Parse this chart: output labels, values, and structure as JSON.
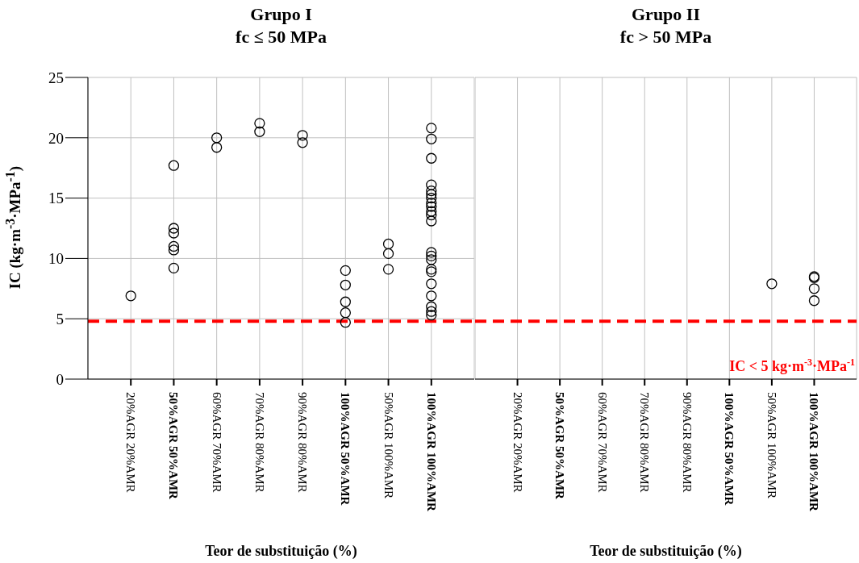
{
  "chart_data": [
    {
      "type": "scatter",
      "title": "Grupo I\nfc ≤ 50 MPa",
      "xlabel": "Teor de substituição (%)",
      "ylabel": "IC (kg·m$^{-3}$·MPa$^{-1}$)",
      "categories": [
        "20%AGR 20%AMR",
        "50%AGR 50%AMR",
        "60%AGR 70%AMR",
        "70%AGR 80%AMR",
        "90%AGR 80%AMR",
        "100%AGR 50%AMR",
        "50%AGR 100%AMR",
        "100%AGR 100%AMR"
      ],
      "series": [
        {
          "color": "#000000",
          "x": [
            "20%AGR 20%AMR",
            "50%AGR 50%AMR",
            "50%AGR 50%AMR",
            "50%AGR 50%AMR",
            "50%AGR 50%AMR",
            "50%AGR 50%AMR",
            "50%AGR 50%AMR",
            "60%AGR 70%AMR",
            "60%AGR 70%AMR",
            "70%AGR 80%AMR",
            "70%AGR 80%AMR",
            "90%AGR 80%AMR",
            "90%AGR 80%AMR",
            "100%AGR 50%AMR",
            "100%AGR 50%AMR",
            "100%AGR 50%AMR",
            "100%AGR 50%AMR",
            "100%AGR 50%AMR",
            "50%AGR 100%AMR",
            "50%AGR 100%AMR",
            "50%AGR 100%AMR",
            "100%AGR 100%AMR",
            "100%AGR 100%AMR",
            "100%AGR 100%AMR",
            "100%AGR 100%AMR",
            "100%AGR 100%AMR",
            "100%AGR 100%AMR",
            "100%AGR 100%AMR",
            "100%AGR 100%AMR",
            "100%AGR 100%AMR",
            "100%AGR 100%AMR",
            "100%AGR 100%AMR",
            "100%AGR 100%AMR",
            "100%AGR 100%AMR",
            "100%AGR 100%AMR",
            "100%AGR 100%AMR",
            "100%AGR 100%AMR",
            "100%AGR 100%AMR",
            "100%AGR 100%AMR",
            "100%AGR 100%AMR",
            "100%AGR 100%AMR",
            "100%AGR 100%AMR",
            "100%AGR 100%AMR"
          ],
          "values": [
            6.9,
            17.7,
            12.5,
            12.1,
            11.0,
            10.7,
            9.2,
            20.0,
            19.2,
            21.2,
            20.5,
            20.2,
            19.6,
            9.0,
            7.8,
            6.4,
            5.5,
            4.7,
            11.2,
            10.4,
            9.1,
            20.8,
            19.9,
            18.3,
            16.1,
            15.6,
            15.3,
            15.0,
            14.6,
            14.3,
            13.9,
            13.6,
            13.1,
            10.5,
            10.2,
            9.9,
            9.1,
            8.9,
            7.9,
            6.9,
            6.0,
            5.6,
            5.3
          ]
        }
      ],
      "ylim": [
        0,
        25
      ],
      "yticks": [
        0,
        5,
        10,
        15,
        20,
        25
      ],
      "grid": true,
      "marker": "circle",
      "legend": false,
      "ref_lines": [
        {
          "axis": "y",
          "value": 4.8,
          "color": "#ff0000",
          "line_style": "dashed"
        }
      ]
    },
    {
      "type": "scatter",
      "title": "Grupo II\nfc > 50 MPa",
      "xlabel": "Teor de substituição (%)",
      "categories": [
        "20%AGR 20%AMR",
        "50%AGR 50%AMR",
        "60%AGR 70%AMR",
        "70%AGR 80%AMR",
        "90%AGR 80%AMR",
        "100%AGR 50%AMR",
        "50%AGR 100%AMR",
        "100%AGR 100%AMR"
      ],
      "series": [
        {
          "color": "#000000",
          "x": [
            "50%AGR 100%AMR",
            "100%AGR 100%AMR",
            "100%AGR 100%AMR",
            "100%AGR 100%AMR",
            "100%AGR 100%AMR"
          ],
          "values": [
            7.9,
            8.5,
            8.4,
            7.5,
            6.5
          ]
        }
      ],
      "ylim": [
        0,
        25
      ],
      "yticks": [
        0,
        5,
        10,
        15,
        20,
        25
      ],
      "grid": true,
      "marker": "circle",
      "legend": false,
      "tick_labels": "x",
      "ref_lines": [
        {
          "axis": "y",
          "value": 4.8,
          "label": "IC < 5 kg·m$^{-3}$·MPa$^{-1}$",
          "color": "#ff0000",
          "line_style": "dashed"
        }
      ]
    }
  ]
}
